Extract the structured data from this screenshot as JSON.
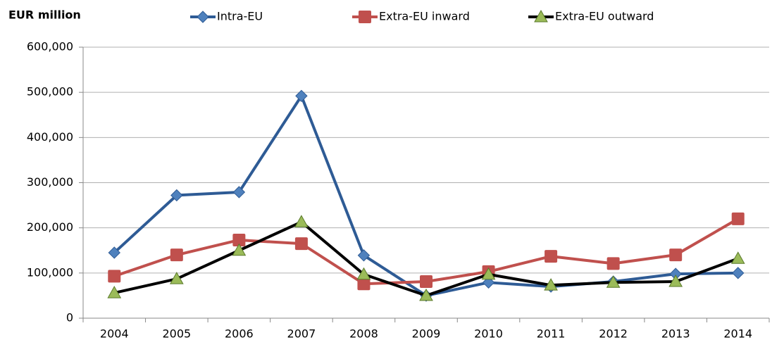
{
  "chart_data": {
    "type": "line",
    "y_label": "EUR million",
    "categories": [
      "2004",
      "2005",
      "2006",
      "2007",
      "2008",
      "2009",
      "2010",
      "2011",
      "2012",
      "2013",
      "2014"
    ],
    "series": [
      {
        "name": "Intra-EU",
        "color": "#2e5b95",
        "marker_color": "#4f81bd",
        "marker": "diamond",
        "values": [
          145000,
          272000,
          279000,
          492000,
          139000,
          50000,
          79000,
          70000,
          81000,
          98000,
          100000
        ]
      },
      {
        "name": "Extra-EU inward",
        "color": "#c0504d",
        "marker_color": "#c0504d",
        "marker": "square",
        "values": [
          93000,
          140000,
          173000,
          165000,
          76000,
          81000,
          103000,
          137000,
          121000,
          140000,
          220000
        ]
      },
      {
        "name": "Extra-EU outward",
        "color": "#000000",
        "marker_color": "#9bbb59",
        "marker": "triangle",
        "values": [
          56000,
          87000,
          150000,
          213000,
          97000,
          50000,
          97000,
          73000,
          79000,
          81000,
          132000
        ]
      }
    ],
    "ylim": [
      0,
      600000
    ],
    "yticks": [
      0,
      {
        "value": 100000,
        "label": "100,000"
      },
      {
        "value": 200000,
        "label": "200,000"
      },
      {
        "value": 300000,
        "label": "300,000"
      },
      {
        "value": 400000,
        "label": "400,000"
      },
      {
        "value": 500000,
        "label": "500,000"
      },
      {
        "value": 600000,
        "label": "600,000"
      }
    ],
    "grid": true
  }
}
